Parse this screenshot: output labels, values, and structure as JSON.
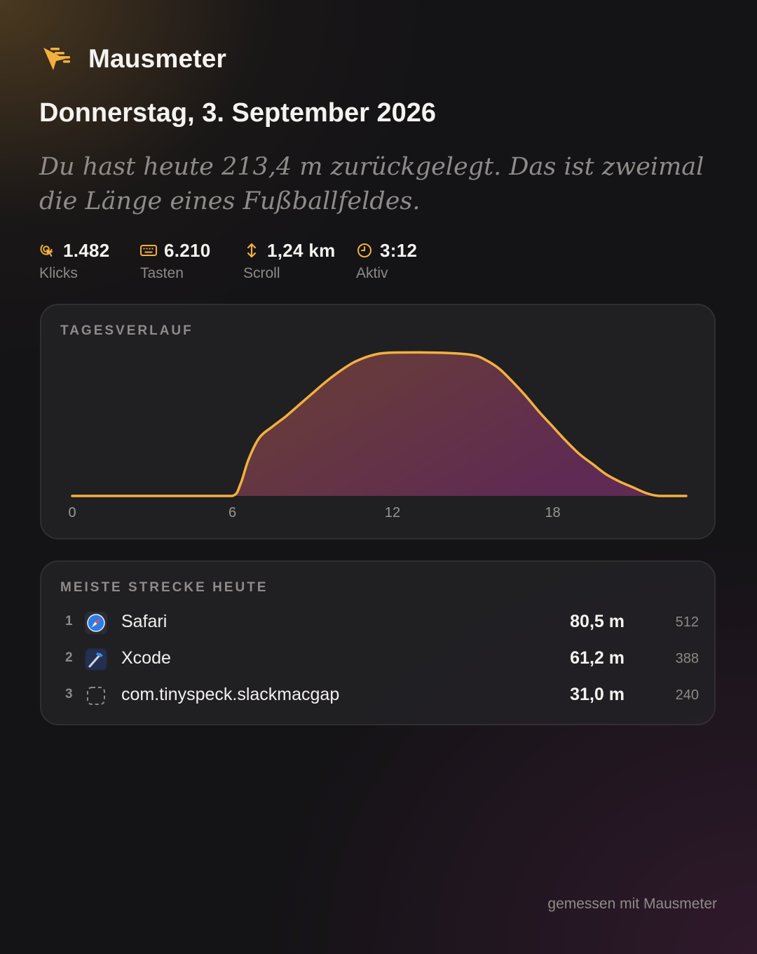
{
  "app": {
    "name": "Mausmeter",
    "icon": "cursor-speed-icon"
  },
  "date": "Donnerstag, 3. September 2026",
  "summary": "Du hast heute 213,4 m zurückgelegt. Das ist zweimal die Länge eines Fußballfeldes.",
  "stats": [
    {
      "icon": "click-icon",
      "value": "1.482",
      "label": "Klicks"
    },
    {
      "icon": "keyboard-icon",
      "value": "6.210",
      "label": "Tasten"
    },
    {
      "icon": "scroll-arrows-icon",
      "value": "1,24 km",
      "label": "Scroll"
    },
    {
      "icon": "clock-icon",
      "value": "3:12",
      "label": "Aktiv"
    }
  ],
  "colors": {
    "accent": "#F2B13E",
    "background": "#141316",
    "card": "#242226"
  },
  "chart": {
    "title": "TAGESVERLAUF",
    "x_ticks": [
      "0",
      "6",
      "12",
      "18"
    ]
  },
  "chart_data": {
    "type": "area",
    "title": "TAGESVERLAUF",
    "xlabel": "",
    "ylabel": "",
    "xlim": [
      0,
      23
    ],
    "ylim": [
      0,
      100
    ],
    "x": [
      0,
      1,
      2,
      3,
      4,
      5,
      6,
      6.3,
      6.6,
      7,
      7.5,
      8,
      8.5,
      9,
      9.5,
      10,
      10.5,
      11,
      11.5,
      12,
      13,
      14,
      15,
      15.5,
      16,
      16.5,
      17,
      17.5,
      18,
      18.5,
      19,
      19.5,
      20,
      20.5,
      21,
      21.5,
      22,
      23
    ],
    "y": [
      0,
      0,
      0,
      0,
      0,
      0,
      0,
      8,
      25,
      40,
      48,
      55,
      63,
      71,
      79,
      86,
      92,
      96,
      98.5,
      99.2,
      99.3,
      99,
      97.5,
      94,
      88,
      79,
      69,
      58,
      48,
      38,
      29,
      22,
      15,
      10,
      6,
      2,
      0,
      0
    ],
    "series": [
      {
        "values": [
          0,
          0,
          0,
          0,
          0,
          0,
          0,
          8,
          25,
          40,
          48,
          55,
          63,
          71,
          79,
          86,
          92,
          96,
          98.5,
          99.2,
          99.3,
          99,
          97.5,
          94,
          88,
          79,
          69,
          58,
          48,
          38,
          29,
          22,
          15,
          10,
          6,
          2,
          0,
          0
        ]
      }
    ],
    "x_ticks": [
      0,
      6,
      12,
      18
    ],
    "grid": false
  },
  "apps": {
    "title": "MEISTE STRECKE HEUTE",
    "rows": [
      {
        "rank": "1",
        "icon": "safari-icon",
        "name": "Safari",
        "distance": "80,5 m",
        "count": "512"
      },
      {
        "rank": "2",
        "icon": "xcode-icon",
        "name": "Xcode",
        "distance": "61,2 m",
        "count": "388"
      },
      {
        "rank": "3",
        "icon": "placeholder-app-icon",
        "name": "com.tinyspeck.slackmacgap",
        "distance": "31,0 m",
        "count": "240"
      }
    ]
  },
  "footer": "gemessen mit Mausmeter"
}
